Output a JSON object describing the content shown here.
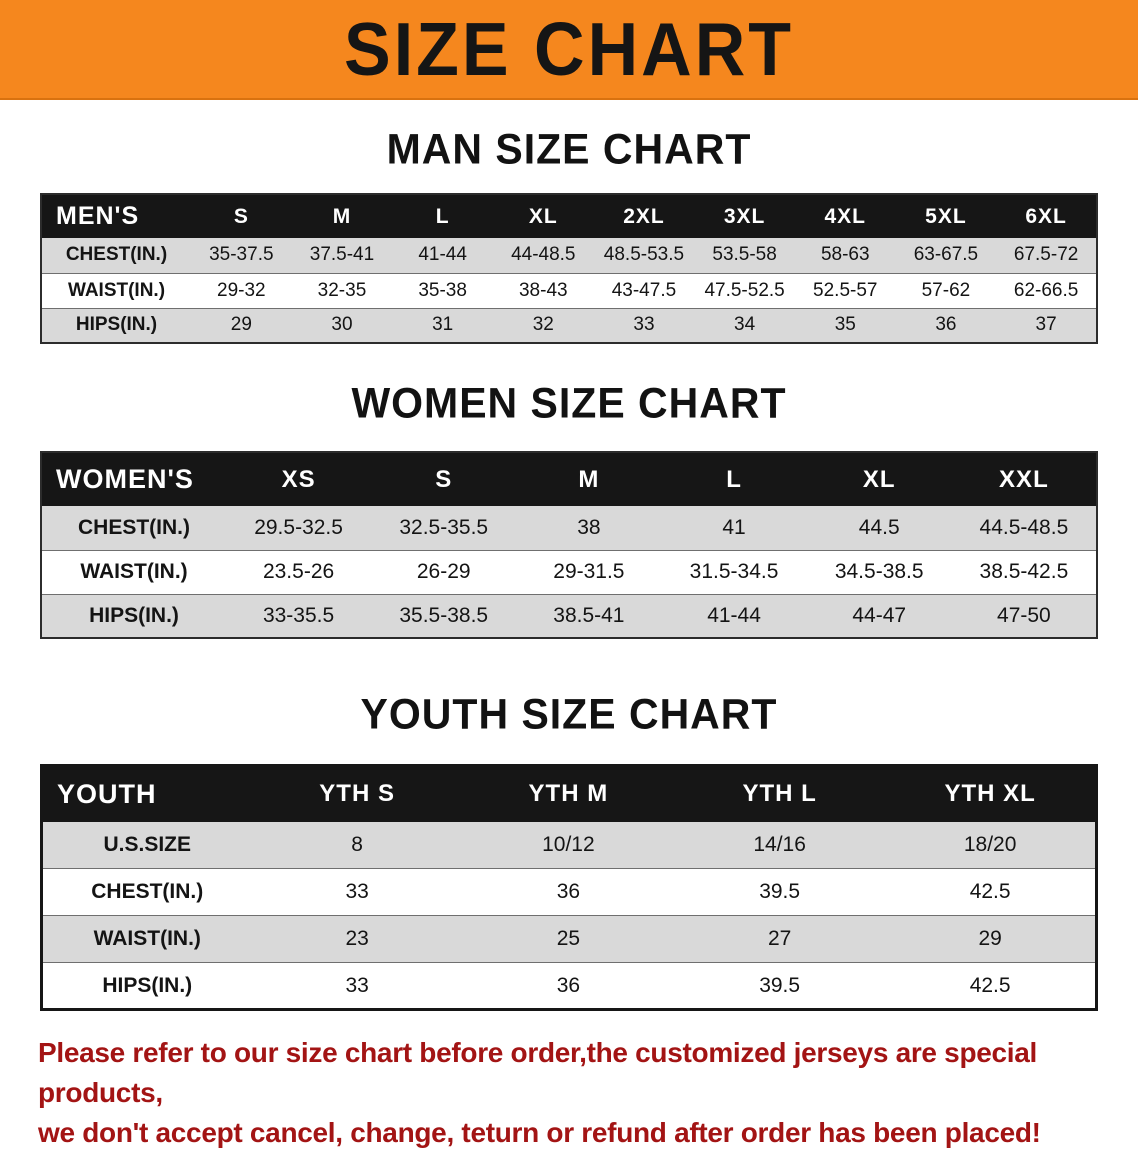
{
  "banner": {
    "title": "SIZE CHART"
  },
  "colors": {
    "banner_orange": "#F5871E",
    "table_header_black": "#161616",
    "row_stripe_gray": "#D9D9D9",
    "disclaimer_red": "#A31414"
  },
  "sections": [
    {
      "heading": "MAN SIZE CHART",
      "table": {
        "header": [
          "MEN'S",
          "S",
          "M",
          "L",
          "XL",
          "2XL",
          "3XL",
          "4XL",
          "5XL",
          "6XL"
        ],
        "rows": [
          [
            "CHEST(IN.)",
            "35-37.5",
            "37.5-41",
            "41-44",
            "44-48.5",
            "48.5-53.5",
            "53.5-58",
            "58-63",
            "63-67.5",
            "67.5-72"
          ],
          [
            "WAIST(IN.)",
            "29-32",
            "32-35",
            "35-38",
            "38-43",
            "43-47.5",
            "47.5-52.5",
            "52.5-57",
            "57-62",
            "62-66.5"
          ],
          [
            "HIPS(IN.)",
            "29",
            "30",
            "31",
            "32",
            "33",
            "34",
            "35",
            "36",
            "37"
          ]
        ]
      }
    },
    {
      "heading": "WOMEN SIZE CHART",
      "table": {
        "header": [
          "WOMEN'S",
          "XS",
          "S",
          "M",
          "L",
          "XL",
          "XXL"
        ],
        "rows": [
          [
            "CHEST(IN.)",
            "29.5-32.5",
            "32.5-35.5",
            "38",
            "41",
            "44.5",
            "44.5-48.5"
          ],
          [
            "WAIST(IN.)",
            "23.5-26",
            "26-29",
            "29-31.5",
            "31.5-34.5",
            "34.5-38.5",
            "38.5-42.5"
          ],
          [
            "HIPS(IN.)",
            "33-35.5",
            "35.5-38.5",
            "38.5-41",
            "41-44",
            "44-47",
            "47-50"
          ]
        ]
      }
    },
    {
      "heading": "YOUTH SIZE CHART",
      "table": {
        "header": [
          "YOUTH",
          "YTH S",
          "YTH M",
          "YTH L",
          "YTH XL"
        ],
        "rows": [
          [
            "U.S.SIZE",
            "8",
            "10/12",
            "14/16",
            "18/20"
          ],
          [
            "CHEST(IN.)",
            "33",
            "36",
            "39.5",
            "42.5"
          ],
          [
            "WAIST(IN.)",
            "23",
            "25",
            "27",
            "29"
          ],
          [
            "HIPS(IN.)",
            "33",
            "36",
            "39.5",
            "42.5"
          ]
        ]
      }
    }
  ],
  "disclaimer": {
    "line1": "Please refer to our size chart before order,the customized jerseys are special products,",
    "line2": "we don't accept cancel, change, teturn or refund after order has been placed!"
  }
}
